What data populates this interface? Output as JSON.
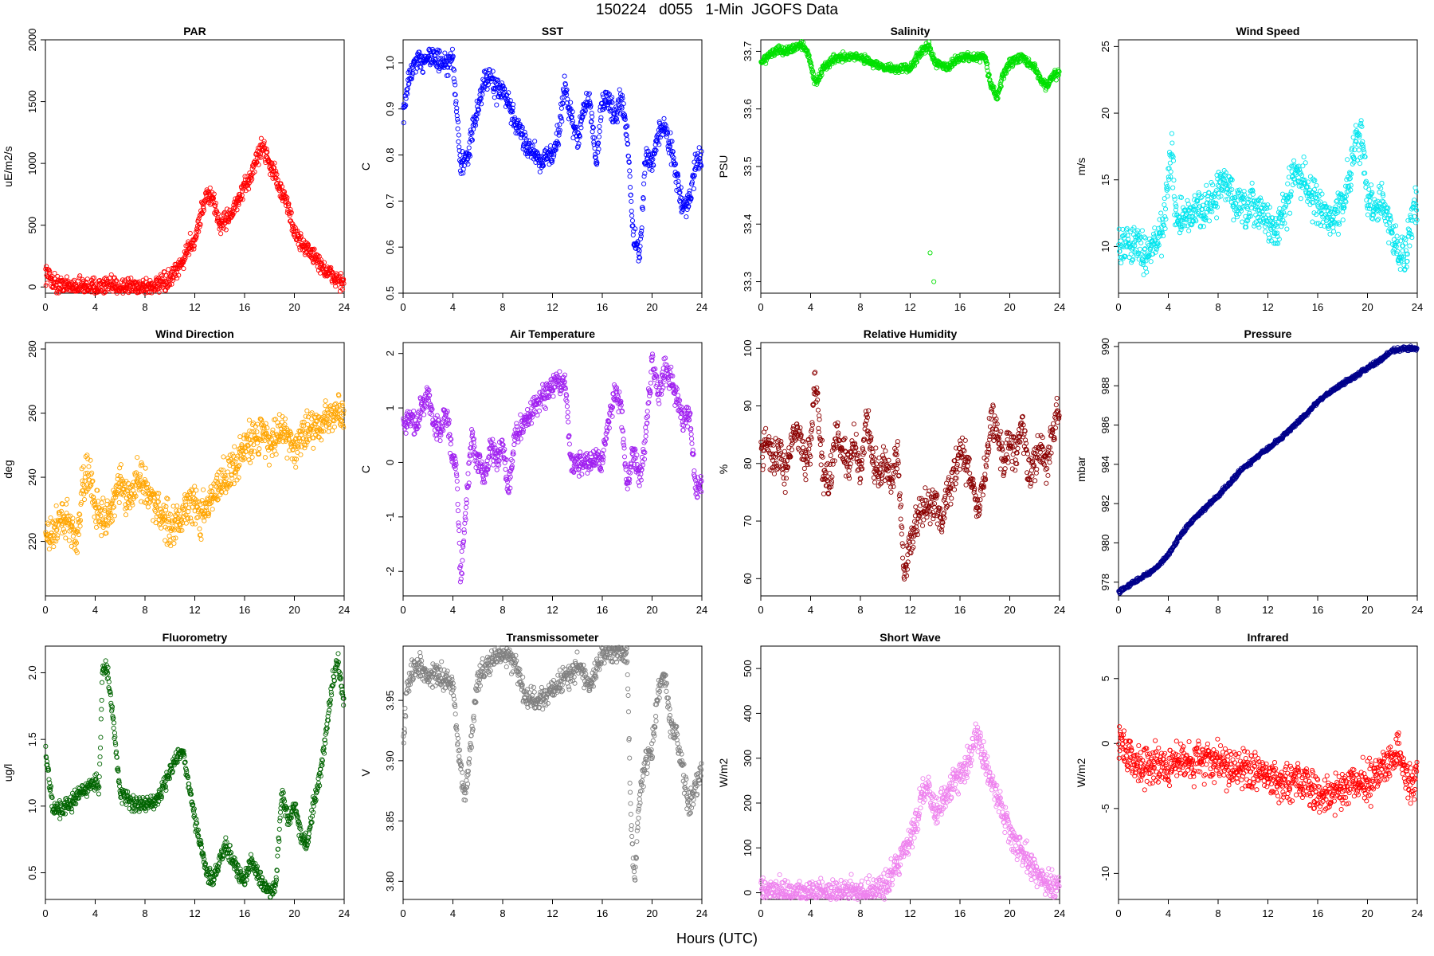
{
  "figure": {
    "title": "150224   d055   1-Min  JGOFS Data",
    "xlabel": "Hours (UTC)"
  },
  "chart_data": [
    {
      "type": "scatter",
      "title": "PAR",
      "ylabel": "uE/m2/s",
      "color": "#ff0000",
      "xlim": [
        0,
        24
      ],
      "ylim": [
        -50,
        2000
      ],
      "xticks": [
        0,
        4,
        8,
        12,
        16,
        20,
        24
      ],
      "yticks": [
        0,
        500,
        1000,
        1500,
        2000
      ],
      "ytick_labels": [
        "0",
        "500",
        "1000",
        "1500",
        "2000"
      ],
      "x": [
        0,
        0.5,
        1,
        2,
        3,
        4,
        5,
        6,
        7,
        8,
        9,
        9.5,
        10,
        10.5,
        11,
        11.5,
        12,
        12.5,
        13,
        13.5,
        14,
        14.5,
        15,
        15.5,
        16,
        16.5,
        17,
        17.5,
        18,
        18.5,
        19,
        19.5,
        20,
        20.5,
        21,
        21.5,
        22,
        22.5,
        23,
        23.5,
        24
      ],
      "y": [
        120,
        60,
        15,
        5,
        5,
        5,
        5,
        5,
        5,
        5,
        10,
        30,
        60,
        120,
        200,
        330,
        380,
        600,
        750,
        700,
        500,
        550,
        600,
        700,
        800,
        900,
        1050,
        1150,
        1000,
        900,
        750,
        650,
        450,
        350,
        320,
        250,
        200,
        130,
        90,
        60,
        30
      ],
      "noise": 60
    },
    {
      "type": "scatter",
      "title": "SST",
      "ylabel": "C",
      "color": "#0000ff",
      "xlim": [
        0,
        24
      ],
      "ylim": [
        0.5,
        1.05
      ],
      "xticks": [
        0,
        4,
        8,
        12,
        16,
        20,
        24
      ],
      "yticks": [
        0.5,
        0.6,
        0.7,
        0.8,
        0.9,
        1.0
      ],
      "ytick_labels": [
        "0.5",
        "0.6",
        "0.7",
        "0.8",
        "0.9",
        "1.0"
      ],
      "x": [
        0,
        0.5,
        1,
        1.5,
        2,
        2.5,
        3,
        3.5,
        4,
        4.3,
        4.6,
        5,
        5.5,
        6,
        6.5,
        7,
        7.5,
        8,
        9,
        10,
        11,
        12,
        12.5,
        13,
        13.5,
        14,
        14.5,
        15,
        15.5,
        16,
        16.5,
        17,
        17.5,
        18,
        18.5,
        19,
        19.5,
        20,
        20.5,
        21,
        21.5,
        22,
        22.5,
        23,
        23.5,
        24
      ],
      "y": [
        0.88,
        0.97,
        1.0,
        1.0,
        1.02,
        1.01,
        1.0,
        0.99,
        1.01,
        0.9,
        0.78,
        0.78,
        0.84,
        0.9,
        0.96,
        0.97,
        0.94,
        0.94,
        0.87,
        0.82,
        0.79,
        0.8,
        0.85,
        0.95,
        0.88,
        0.83,
        0.9,
        0.92,
        0.78,
        0.92,
        0.92,
        0.88,
        0.92,
        0.85,
        0.62,
        0.58,
        0.8,
        0.78,
        0.85,
        0.86,
        0.82,
        0.75,
        0.68,
        0.7,
        0.78,
        0.8
      ],
      "noise": 0.02
    },
    {
      "type": "scatter",
      "title": "Salinity",
      "ylabel": "PSU",
      "color": "#00e000",
      "xlim": [
        0,
        24
      ],
      "ylim": [
        33.28,
        33.72
      ],
      "xticks": [
        0,
        4,
        8,
        12,
        16,
        20,
        24
      ],
      "yticks": [
        33.3,
        33.4,
        33.5,
        33.6,
        33.7
      ],
      "ytick_labels": [
        "33.3",
        "33.4",
        "33.5",
        "33.6",
        "33.7"
      ],
      "x": [
        0,
        0.5,
        1,
        2,
        3,
        3.5,
        4,
        4.3,
        4.6,
        5,
        6,
        7,
        8,
        9,
        10,
        11,
        12,
        12.5,
        13,
        13.5,
        14,
        14.5,
        15,
        15.5,
        16,
        17,
        18,
        18.5,
        19,
        19.5,
        20,
        21,
        22,
        22.5,
        23,
        23.5,
        24
      ],
      "y": [
        33.68,
        33.69,
        33.7,
        33.7,
        33.71,
        33.71,
        33.68,
        33.65,
        33.65,
        33.67,
        33.69,
        33.69,
        33.69,
        33.68,
        33.67,
        33.67,
        33.67,
        33.69,
        33.7,
        33.71,
        33.68,
        33.68,
        33.67,
        33.68,
        33.69,
        33.69,
        33.69,
        33.64,
        33.62,
        33.66,
        33.68,
        33.69,
        33.67,
        33.65,
        33.64,
        33.66,
        33.66
      ],
      "noise": 0.006,
      "extra_points": [
        [
          13.6,
          33.35
        ],
        [
          13.9,
          33.3
        ]
      ]
    },
    {
      "type": "scatter",
      "title": "Wind Speed",
      "ylabel": "m/s",
      "color": "#00e5ee",
      "xlim": [
        0,
        24
      ],
      "ylim": [
        6.5,
        25.5
      ],
      "xticks": [
        0,
        4,
        8,
        12,
        16,
        20,
        24
      ],
      "yticks": [
        10,
        15,
        20,
        25
      ],
      "ytick_labels": [
        "10",
        "15",
        "20",
        "25"
      ],
      "x": [
        0,
        0.5,
        1,
        1.5,
        2,
        2.5,
        3,
        3.5,
        4,
        4.3,
        4.6,
        5,
        6,
        7,
        8,
        8.5,
        9,
        10,
        11,
        12,
        12.5,
        13,
        13.5,
        14,
        15,
        16,
        17,
        18,
        18.5,
        19,
        19.5,
        20,
        20.5,
        21,
        22,
        23,
        23.5,
        24
      ],
      "y": [
        10.5,
        10,
        10.5,
        10,
        9.5,
        10,
        10.5,
        11,
        15,
        17,
        12,
        12,
        12.5,
        13,
        14,
        15,
        14,
        12.5,
        13,
        12,
        11,
        12,
        13,
        15.5,
        15,
        13,
        12,
        13,
        15,
        18,
        18,
        14,
        13,
        13.5,
        11,
        9,
        12,
        13.5
      ],
      "noise": 1.2
    },
    {
      "type": "scatter",
      "title": "Wind Direction",
      "ylabel": "deg",
      "color": "#ffa500",
      "xlim": [
        0,
        24
      ],
      "ylim": [
        203,
        282
      ],
      "xticks": [
        0,
        4,
        8,
        12,
        16,
        20,
        24
      ],
      "yticks": [
        220,
        240,
        260,
        280
      ],
      "ytick_labels": [
        "220",
        "240",
        "260",
        "280"
      ],
      "x": [
        0,
        0.5,
        1,
        1.5,
        2,
        2.5,
        3,
        3.5,
        4,
        4.5,
        5,
        5.5,
        6,
        6.5,
        7,
        7.5,
        8,
        9,
        10,
        11,
        12,
        12.5,
        13,
        14,
        15,
        16,
        17,
        17.5,
        18,
        19,
        20,
        20.5,
        21,
        22,
        23,
        24
      ],
      "y": [
        220,
        222,
        225,
        228,
        225,
        220,
        238,
        242,
        232,
        228,
        226,
        233,
        238,
        232,
        235,
        240,
        237,
        230,
        225,
        228,
        232,
        228,
        230,
        238,
        242,
        250,
        252,
        255,
        250,
        255,
        250,
        252,
        255,
        256,
        259,
        260
      ],
      "noise": 5
    },
    {
      "type": "scatter",
      "title": "Air Temperature",
      "ylabel": "C",
      "color": "#a020f0",
      "xlim": [
        0,
        24
      ],
      "ylim": [
        -2.45,
        2.2
      ],
      "xticks": [
        0,
        4,
        8,
        12,
        16,
        20,
        24
      ],
      "yticks": [
        -2,
        -1,
        0,
        1,
        2
      ],
      "ytick_labels": [
        "-2",
        "-1",
        "0",
        "1",
        "2"
      ],
      "x": [
        0,
        0.5,
        1,
        1.5,
        2,
        2.5,
        3,
        3.5,
        4,
        4.3,
        4.6,
        5,
        5.5,
        6,
        6.5,
        7,
        7.5,
        8,
        8.5,
        9,
        10,
        11,
        12,
        12.5,
        13,
        13.5,
        14,
        15,
        15.5,
        16,
        16.5,
        17,
        17.5,
        18,
        18.5,
        19,
        19.5,
        20,
        20.5,
        21,
        21.5,
        22,
        22.5,
        23,
        23.5,
        24
      ],
      "y": [
        0.7,
        0.8,
        0.7,
        1.0,
        1.3,
        0.7,
        0.5,
        0.9,
        0.0,
        -0.1,
        -2.2,
        -1.0,
        0.5,
        0.0,
        -0.3,
        0.3,
        0.0,
        0.3,
        -0.5,
        0.5,
        0.8,
        1.2,
        1.4,
        1.45,
        1.5,
        0.0,
        0.0,
        0.0,
        0.1,
        0.0,
        0.8,
        1.3,
        1.0,
        -0.5,
        0.2,
        -0.3,
        0.5,
        1.9,
        1.2,
        1.7,
        1.6,
        1.2,
        0.8,
        0.9,
        -0.5,
        -0.3
      ],
      "noise": 0.18
    },
    {
      "type": "scatter",
      "title": "Relative Humidity",
      "ylabel": "%",
      "color": "#8b0000",
      "xlim": [
        0,
        24
      ],
      "ylim": [
        57,
        101
      ],
      "xticks": [
        0,
        4,
        8,
        12,
        16,
        20,
        24
      ],
      "yticks": [
        60,
        70,
        80,
        90,
        100
      ],
      "ytick_labels": [
        "60",
        "70",
        "80",
        "90",
        "100"
      ],
      "x": [
        0,
        0.5,
        1,
        1.5,
        2,
        2.5,
        3,
        3.5,
        4,
        4.3,
        4.6,
        5,
        5.5,
        6,
        6.5,
        7,
        7.5,
        8,
        8.5,
        9,
        9.5,
        10,
        10.5,
        11,
        11.5,
        12,
        12.5,
        13,
        13.5,
        14,
        14.5,
        15,
        15.5,
        16,
        16.5,
        17,
        17.5,
        18,
        18.5,
        19,
        19.5,
        20,
        20.5,
        21,
        21.5,
        22,
        22.5,
        23,
        23.5,
        24
      ],
      "y": [
        82,
        84,
        80,
        82,
        78,
        84,
        86,
        80,
        83,
        95,
        90,
        78,
        76,
        85,
        82,
        80,
        84,
        78,
        88,
        80,
        78,
        80,
        76,
        82,
        60,
        66,
        70,
        73,
        72,
        74,
        70,
        75,
        78,
        82,
        80,
        76,
        72,
        78,
        88,
        85,
        80,
        84,
        82,
        88,
        78,
        80,
        83,
        80,
        86,
        89
      ],
      "noise": 2.5
    },
    {
      "type": "scatter",
      "title": "Pressure",
      "ylabel": "mbar",
      "color": "#00008b",
      "xlim": [
        0,
        24
      ],
      "ylim": [
        977.3,
        990.2
      ],
      "xticks": [
        0,
        4,
        8,
        12,
        16,
        20,
        24
      ],
      "yticks": [
        978,
        980,
        982,
        984,
        986,
        988,
        990
      ],
      "ytick_labels": [
        "978",
        "980",
        "982",
        "984",
        "986",
        "988",
        "990"
      ],
      "x": [
        0,
        1,
        2,
        3,
        4,
        5,
        6,
        7,
        8,
        9,
        10,
        11,
        12,
        13,
        14,
        15,
        16,
        17,
        18,
        19,
        20,
        21,
        22,
        23,
        24
      ],
      "y": [
        977.5,
        977.9,
        978.3,
        978.7,
        979.4,
        980.4,
        981.2,
        981.8,
        982.4,
        983.1,
        983.8,
        984.3,
        984.8,
        985.3,
        985.9,
        986.5,
        987.2,
        987.7,
        988.1,
        988.5,
        988.9,
        989.3,
        989.8,
        989.9,
        989.9
      ],
      "noise": 0.08
    },
    {
      "type": "scatter",
      "title": "Fluorometry",
      "ylabel": "ug/l",
      "color": "#006400",
      "xlim": [
        0,
        24
      ],
      "ylim": [
        0.3,
        2.2
      ],
      "xticks": [
        0,
        4,
        8,
        12,
        16,
        20,
        24
      ],
      "yticks": [
        0.5,
        1.0,
        1.5,
        2.0
      ],
      "ytick_labels": [
        "0.5",
        "1.0",
        "1.5",
        "2.0"
      ],
      "x": [
        0,
        0.3,
        0.6,
        1,
        2,
        3,
        3.5,
        4,
        4.3,
        4.6,
        5,
        5.5,
        6,
        7,
        8,
        9,
        10,
        10.5,
        11,
        11.5,
        12,
        12.5,
        13,
        13.5,
        14,
        14.5,
        15,
        15.5,
        16,
        16.5,
        17,
        17.5,
        18,
        18.5,
        19,
        19.5,
        20,
        20.5,
        21,
        21.5,
        22,
        22.5,
        23,
        23.5,
        24
      ],
      "y": [
        1.4,
        1.2,
        0.98,
        0.97,
        1.02,
        1.12,
        1.15,
        1.2,
        1.1,
        2.05,
        2.0,
        1.6,
        1.1,
        1.02,
        1.0,
        1.05,
        1.25,
        1.35,
        1.4,
        1.2,
        0.9,
        0.7,
        0.5,
        0.45,
        0.6,
        0.7,
        0.6,
        0.5,
        0.45,
        0.6,
        0.5,
        0.4,
        0.38,
        0.4,
        1.1,
        0.9,
        1.0,
        0.8,
        0.7,
        1.0,
        1.2,
        1.5,
        1.9,
        2.1,
        1.75
      ],
      "noise": 0.05
    },
    {
      "type": "scatter",
      "title": "Transmissometer",
      "ylabel": "V",
      "color": "#808080",
      "xlim": [
        0,
        24
      ],
      "ylim": [
        3.785,
        3.995
      ],
      "xticks": [
        0,
        4,
        8,
        12,
        16,
        20,
        24
      ],
      "yticks": [
        3.8,
        3.85,
        3.9,
        3.95
      ],
      "ytick_labels": [
        "3.80",
        "3.85",
        "3.90",
        "3.95"
      ],
      "x": [
        0,
        0.3,
        0.6,
        1,
        2,
        3,
        4,
        4.5,
        5,
        5.5,
        6,
        7,
        8,
        9,
        10,
        11,
        12,
        13,
        13.5,
        14,
        14.5,
        15,
        16,
        17,
        18,
        18.3,
        18.6,
        19,
        19.5,
        20,
        20.5,
        21,
        21.5,
        22,
        22.5,
        23,
        23.5,
        24
      ],
      "y": [
        3.91,
        3.96,
        3.97,
        3.98,
        3.97,
        3.97,
        3.96,
        3.9,
        3.87,
        3.92,
        3.97,
        3.98,
        3.99,
        3.98,
        3.95,
        3.95,
        3.96,
        3.97,
        3.97,
        3.98,
        3.97,
        3.96,
        3.99,
        3.99,
        3.99,
        3.85,
        3.8,
        3.87,
        3.9,
        3.91,
        3.96,
        3.97,
        3.93,
        3.92,
        3.89,
        3.86,
        3.88,
        3.89
      ],
      "noise": 0.008
    },
    {
      "type": "scatter",
      "title": "Short Wave",
      "ylabel": "W/m2",
      "color": "#ee82ee",
      "xlim": [
        0,
        24
      ],
      "ylim": [
        -15,
        550
      ],
      "xticks": [
        0,
        4,
        8,
        12,
        16,
        20,
        24
      ],
      "yticks": [
        0,
        100,
        200,
        300,
        400,
        500
      ],
      "ytick_labels": [
        "0",
        "100",
        "200",
        "300",
        "400",
        "500"
      ],
      "x": [
        0,
        0.5,
        1,
        2,
        3,
        4,
        5,
        6,
        7,
        8,
        9,
        9.5,
        10,
        10.5,
        11,
        11.5,
        12,
        12.5,
        13,
        13.5,
        14,
        14.5,
        15,
        15.5,
        16,
        16.5,
        17,
        17.5,
        18,
        18.5,
        19,
        19.5,
        20,
        20.5,
        21,
        21.5,
        22,
        22.5,
        23,
        23.5,
        24
      ],
      "y": [
        25,
        8,
        2,
        2,
        2,
        2,
        2,
        2,
        2,
        2,
        5,
        12,
        20,
        40,
        60,
        100,
        120,
        160,
        230,
        230,
        180,
        200,
        220,
        250,
        260,
        280,
        330,
        350,
        300,
        250,
        210,
        180,
        140,
        110,
        90,
        70,
        50,
        30,
        25,
        20,
        12
      ],
      "noise": 25
    },
    {
      "type": "scatter",
      "title": "Infrared",
      "ylabel": "W/m2",
      "color": "#ff0000",
      "xlim": [
        0,
        24
      ],
      "ylim": [
        -12,
        7.5
      ],
      "xticks": [
        0,
        4,
        8,
        12,
        16,
        20,
        24
      ],
      "yticks": [
        -10,
        -5,
        0,
        5
      ],
      "ytick_labels": [
        "-10",
        "-5",
        "0",
        "5"
      ],
      "x": [
        0,
        1,
        2,
        3,
        4,
        5,
        6,
        7,
        8,
        9,
        10,
        11,
        12,
        13,
        14,
        15,
        16,
        17,
        18,
        19,
        20,
        21,
        22,
        22.5,
        23,
        23.5,
        24
      ],
      "y": [
        0,
        -1,
        -2,
        -1.5,
        -2,
        -1,
        -1.5,
        -1,
        -1.5,
        -2,
        -2,
        -2,
        -2.5,
        -3,
        -3,
        -3,
        -4,
        -4,
        -3.5,
        -3,
        -3,
        -2,
        -1,
        -0.5,
        -2.5,
        -3,
        -2.5
      ],
      "noise": 1.2
    }
  ]
}
